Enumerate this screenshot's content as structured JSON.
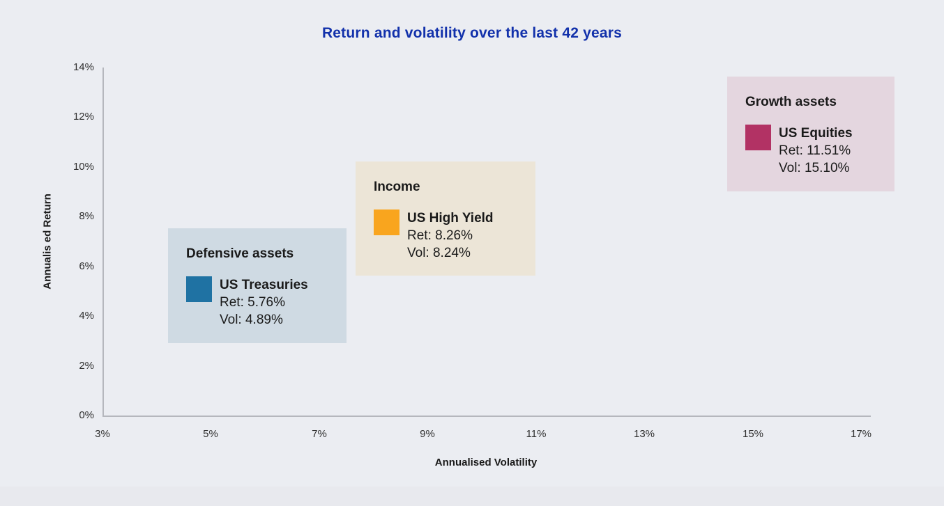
{
  "page": {
    "background": "#e8e9ee",
    "card_background": "#ebedf2"
  },
  "colors": {
    "title": "#1231ab",
    "axis_line": "#b5b7bd",
    "tick_label": "#2f2f2f",
    "text": "#1a1a1a"
  },
  "chart_data": {
    "type": "scatter",
    "title": "Return and volatility over the last 42 years",
    "xlabel": "Annualised Volatility",
    "ylabel": "Annualis ed Return",
    "xlim": [
      3,
      17
    ],
    "ylim": [
      0,
      14
    ],
    "x_tick_labels": [
      "3%",
      "5%",
      "7%",
      "9%",
      "11%",
      "13%",
      "15%",
      "17%"
    ],
    "y_tick_labels_top_down": [
      "14%",
      "12%",
      "10%",
      "8%",
      "6%",
      "4%",
      "2%",
      "0%"
    ],
    "grid": false,
    "legend_position": "inline-annotation-boxes",
    "series": [
      {
        "group": "Defensive assets",
        "name": "US Treasuries",
        "x_volatility_pct": 4.89,
        "y_return_pct": 5.76,
        "ret_label": "Ret: 5.76%",
        "vol_label": "Vol: 4.89%",
        "marker_color": "#1f72a3",
        "box_color": "#cfdae3"
      },
      {
        "group": "Income",
        "name": "US High Yield",
        "x_volatility_pct": 8.24,
        "y_return_pct": 8.26,
        "ret_label": "Ret: 8.26%",
        "vol_label": "Vol: 8.24%",
        "marker_color": "#f9a51e",
        "box_color": "#ece5d7"
      },
      {
        "group": "Growth assets",
        "name": "US Equities",
        "x_volatility_pct": 15.1,
        "y_return_pct": 11.51,
        "ret_label": "Ret: 11.51%",
        "vol_label": "Vol: 15.10%",
        "marker_color": "#b23264",
        "box_color": "#e4d6df"
      }
    ]
  }
}
